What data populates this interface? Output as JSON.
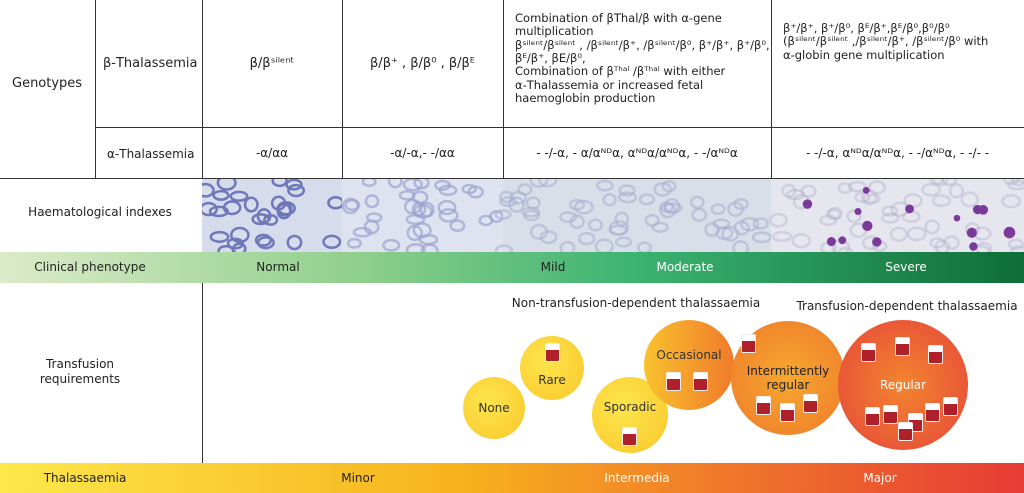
{
  "genotypes_label": "Genotypes",
  "beta_label": "β-Thalassemia",
  "alpha_label": "α-Thalassemia",
  "beta_row": [
    [
      "β/βˢⁱˡᵉⁿᵗ"
    ],
    [
      "β/β⁺ , β/β⁰ , β/βᴱ"
    ],
    [
      "Combination of βThal/β with α-gene",
      "multiplication",
      "βˢⁱˡᵉⁿᵗ/βˢⁱˡᵉⁿᵗ , /βˢⁱˡᵉⁿᵗ/β⁺, /βˢⁱˡᵉⁿᵗ/β⁰, β⁺/β⁺, β⁺/β⁰,",
      "βᴱ/β⁺, βE/β⁰,",
      "Combination of βᵀʰᵃˡ /βᵀʰᵃˡ with either",
      "α-Thalassemia or increased fetal",
      "haemoglobin production"
    ],
    [
      "β⁺/β⁺, β⁺/β⁰, βᴱ/β⁺,βᴱ/β⁰,β⁰/β⁰",
      "(βˢⁱˡᵉⁿᵗ/βˢⁱˡᵉⁿᵗ ,/βˢⁱˡᵉⁿᵗ/β⁺, /βˢⁱˡᵉⁿᵗ/β⁰ with",
      "α-globin gene multiplication"
    ]
  ],
  "alpha_row": [
    "-α/αα",
    "-α/-α,- -/αα",
    "- -/-α, - α/αᴺᴰα, αᴺᴰα/αᴺᴰα, - -/αᴺᴰα",
    "- -/-α, αᴺᴰα/αᴺᴰα, - -/αᴺᴰα, - -/- -"
  ],
  "haematological_label": "Haematological indexes",
  "clinical_phenotype": {
    "label": "Clinical phenotype",
    "stages": [
      "Normal",
      "Mild",
      "Moderate",
      "Severe"
    ]
  },
  "transfusion": {
    "label": [
      "Transfusion",
      "requirements"
    ],
    "groups": [
      "Non-transfusion-dependent thalassaemia",
      "Transfusion-dependent thalassaemia"
    ],
    "levels": [
      "None",
      "Rare",
      "Sporadic",
      "Occasional",
      "Intermittently regular",
      "Regular"
    ]
  },
  "thalassaemia": {
    "label": "Thalassaemia",
    "classes": [
      "Minor",
      "Intermedia",
      "Major"
    ]
  }
}
